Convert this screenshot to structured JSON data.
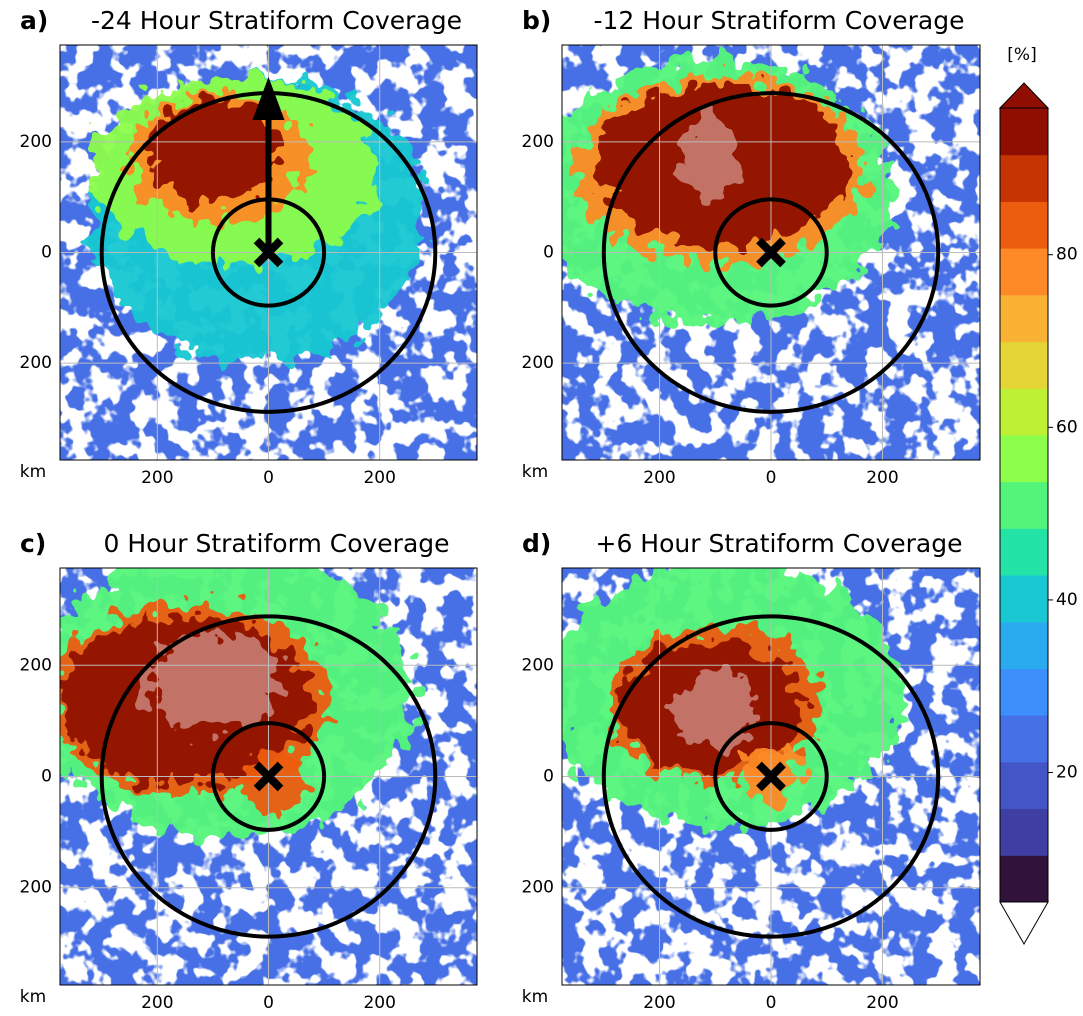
{
  "chart_data": [
    {
      "type": "contour",
      "label": "a)",
      "title": "-24 Hour  Stratiform Coverage",
      "xlabel": "km",
      "xlim": [
        -375,
        375
      ],
      "ylim": [
        -375,
        375
      ],
      "xticks": [
        {
          "value": -200,
          "label": "200"
        },
        0,
        200
      ],
      "yticks": [
        {
          "value": -200,
          "label": "200"
        },
        0,
        200
      ],
      "grid": true
    },
    {
      "type": "contour",
      "label": "b)",
      "title": "-12 Hour  Stratiform Coverage",
      "xlabel": "km",
      "xlim": [
        -375,
        375
      ],
      "ylim": [
        -375,
        375
      ],
      "xticks": [
        {
          "value": -200,
          "label": "200"
        },
        0,
        200
      ],
      "yticks": [
        {
          "value": -200,
          "label": "200"
        },
        0,
        200
      ],
      "grid": true
    },
    {
      "type": "contour",
      "label": "c)",
      "title": "0 Hour  Stratiform Coverage",
      "xlabel": "km",
      "xlim": [
        -375,
        375
      ],
      "ylim": [
        -375,
        375
      ],
      "xticks": [
        {
          "value": -200,
          "label": "200"
        },
        0,
        200
      ],
      "yticks": [
        {
          "value": -200,
          "label": "200"
        },
        0,
        200
      ],
      "grid": true
    },
    {
      "type": "contour",
      "label": "d)",
      "title": "+6 Hour  Stratiform Coverage",
      "xlabel": "km",
      "xlim": [
        -375,
        375
      ],
      "ylim": [
        -375,
        375
      ],
      "xticks": [
        {
          "value": -200,
          "label": "200"
        },
        0,
        200
      ],
      "yticks": [
        {
          "value": -200,
          "label": "200"
        },
        0,
        200
      ],
      "grid": true
    }
  ],
  "colorbar": {
    "label": "[%]",
    "clim": [
      5,
      97
    ],
    "ticks": [
      20,
      40,
      60,
      80
    ],
    "colors": [
      "#30123b",
      "#3f3fa3",
      "#4456c7",
      "#4670e6",
      "#3d8ffb",
      "#2aabf0",
      "#19c8d2",
      "#24e3a6",
      "#52f57a",
      "#8cfd4b",
      "#bef034",
      "#e4d435",
      "#f9b234",
      "#fd8a26",
      "#ed5d10",
      "#c63404",
      "#8f0e01"
    ]
  }
}
